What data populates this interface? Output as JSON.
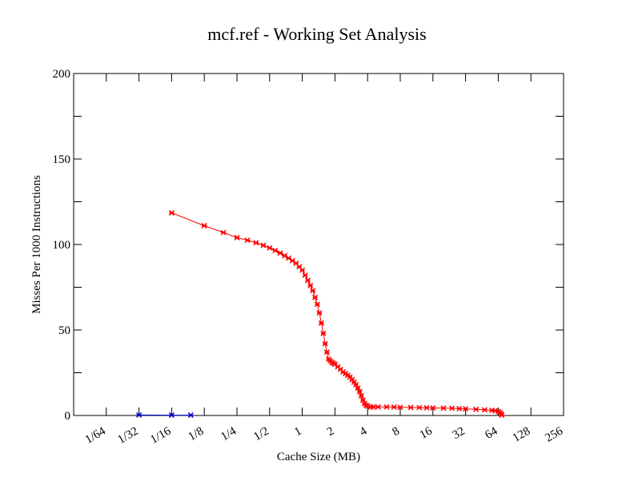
{
  "chart_data": {
    "type": "scatter",
    "title": "mcf.ref - Working Set Analysis",
    "xlabel": "Cache Size (MB)",
    "ylabel": "Misses Per 1000 Instructions",
    "x_scale": "log2",
    "xlim": [
      0.0078125,
      256
    ],
    "ylim": [
      0,
      200
    ],
    "x_ticks": [
      {
        "value": 0.015625,
        "label": "1/64"
      },
      {
        "value": 0.03125,
        "label": "1/32"
      },
      {
        "value": 0.0625,
        "label": "1/16"
      },
      {
        "value": 0.125,
        "label": "1/8"
      },
      {
        "value": 0.25,
        "label": "1/4"
      },
      {
        "value": 0.5,
        "label": "1/2"
      },
      {
        "value": 1,
        "label": "1"
      },
      {
        "value": 2,
        "label": "2"
      },
      {
        "value": 4,
        "label": "4"
      },
      {
        "value": 8,
        "label": "8"
      },
      {
        "value": 16,
        "label": "16"
      },
      {
        "value": 32,
        "label": "32"
      },
      {
        "value": 64,
        "label": "64"
      },
      {
        "value": 128,
        "label": "128"
      },
      {
        "value": 256,
        "label": "256"
      }
    ],
    "y_ticks": [
      {
        "value": 0,
        "label": "0"
      },
      {
        "value": 50,
        "label": "50"
      },
      {
        "value": 100,
        "label": "100"
      },
      {
        "value": 150,
        "label": "150"
      },
      {
        "value": 200,
        "label": "200"
      }
    ],
    "series": [
      {
        "color": "#ff0000",
        "marker": "cross",
        "x": [
          0.0625,
          0.125,
          0.1875,
          0.25,
          0.3125,
          0.375,
          0.4375,
          0.5,
          0.5625,
          0.625,
          0.6875,
          0.75,
          0.8125,
          0.875,
          0.9375,
          1.0,
          1.0625,
          1.125,
          1.1875,
          1.25,
          1.3125,
          1.375,
          1.4375,
          1.5,
          1.5625,
          1.625,
          1.6875,
          1.75,
          1.8125,
          1.875,
          1.9375,
          2.0,
          2.125,
          2.25,
          2.375,
          2.5,
          2.625,
          2.75,
          2.875,
          3.0,
          3.125,
          3.25,
          3.375,
          3.5,
          3.625,
          3.75,
          3.875,
          4.0,
          4.25,
          4.5,
          5,
          6,
          7,
          8,
          10,
          12,
          14,
          16,
          20,
          24,
          28,
          32,
          40,
          48,
          56,
          60,
          64,
          66,
          68,
          69
        ],
        "y": [
          118.5,
          111,
          107,
          104,
          102.5,
          101,
          99.5,
          98,
          96.5,
          95,
          93.5,
          92,
          90.5,
          89,
          87,
          85,
          82,
          79,
          76,
          73,
          69,
          65,
          60,
          54,
          48,
          42,
          37,
          33,
          32,
          31,
          30.5,
          30,
          28.5,
          27,
          25.5,
          24.5,
          23.5,
          22.5,
          21,
          19.5,
          18,
          16,
          14,
          11.5,
          9,
          7,
          6,
          5.5,
          5,
          5,
          5,
          5,
          4.9,
          4.8,
          4.7,
          4.6,
          4.5,
          4.4,
          4.3,
          4.2,
          4.0,
          3.9,
          3.6,
          3.3,
          3.0,
          2.8,
          2.4,
          1.8,
          1.0,
          0.2
        ]
      },
      {
        "color": "#0000cc",
        "marker": "cross",
        "x": [
          0.03125,
          0.0625,
          0.09375
        ],
        "y": [
          0.3,
          0.2,
          0.2
        ]
      }
    ],
    "grid": false,
    "legend": "none"
  }
}
